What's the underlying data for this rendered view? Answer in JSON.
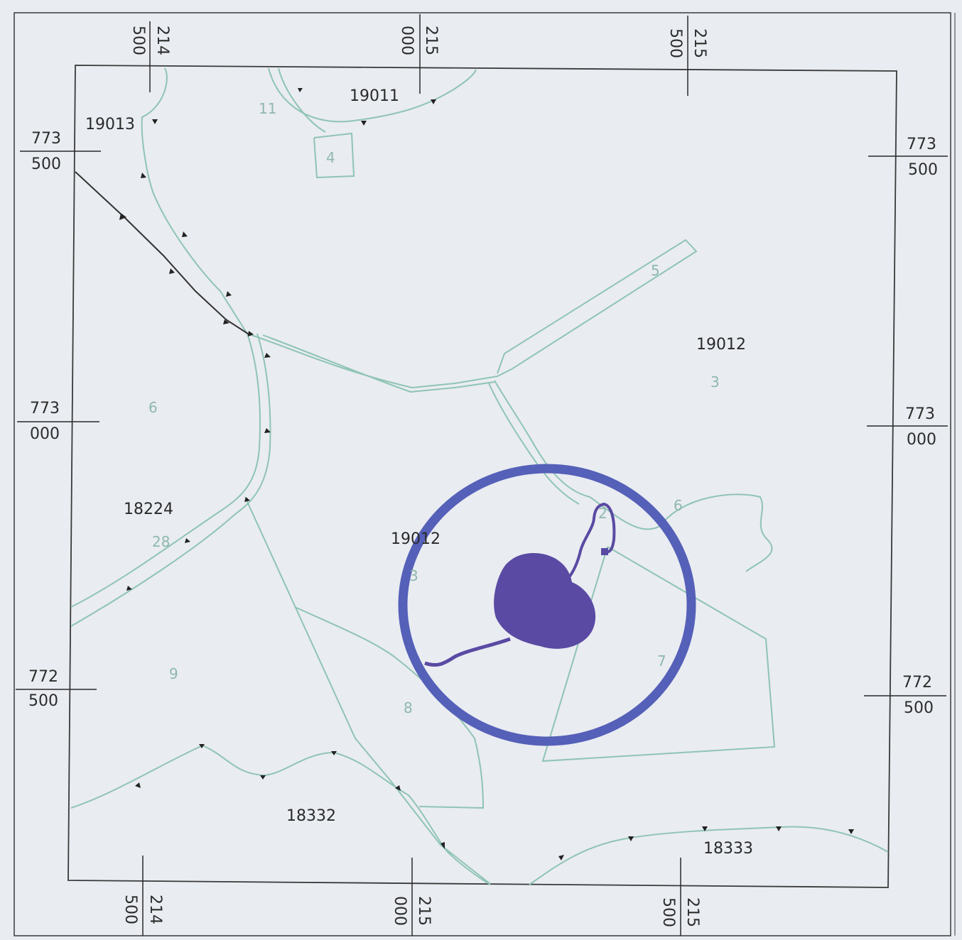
{
  "grid": {
    "top": [
      [
        "214",
        "500"
      ],
      [
        "215",
        "000"
      ],
      [
        "215",
        "500"
      ]
    ],
    "bottom": [
      [
        "214",
        "500"
      ],
      [
        "215",
        "000"
      ],
      [
        "215",
        "500"
      ]
    ],
    "left": [
      [
        "773",
        "500"
      ],
      [
        "773",
        "000"
      ],
      [
        "772",
        "500"
      ]
    ],
    "right": [
      [
        "773",
        "500"
      ],
      [
        "773",
        "000"
      ],
      [
        "772",
        "500"
      ]
    ]
  },
  "parcels": {
    "p19013": "19013",
    "p19011": "19011",
    "p19012a": "19012",
    "p19012b": "19012",
    "p18224": "18224",
    "p18332": "18332",
    "p18333": "18333"
  },
  "plots": {
    "n11": "11",
    "n4": "4",
    "n5": "5",
    "n3a": "3",
    "n6a": "6",
    "n6b": "6",
    "n28": "28",
    "n2": "2",
    "n3b": "3",
    "n9": "9",
    "n8": "8",
    "n7": "7"
  },
  "colors": {
    "background": "#e9ecf1",
    "boundary": "#8fc4b4",
    "highlight_circle": "#5560b8",
    "lake": "#5a4aa3"
  }
}
